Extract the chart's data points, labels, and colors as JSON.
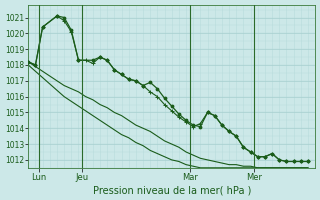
{
  "background_color": "#cce8e8",
  "grid_color_major": "#a8d0d0",
  "grid_color_minor": "#b8dcdc",
  "line_color": "#1a5c1a",
  "title": "Pression niveau de la mer( hPa )",
  "ylim": [
    1011.5,
    1021.8
  ],
  "yticks": [
    1012,
    1013,
    1014,
    1015,
    1016,
    1017,
    1018,
    1019,
    1020,
    1021
  ],
  "xlim": [
    0,
    40
  ],
  "day_labels": [
    "Lun",
    "Jeu",
    "Mar",
    "Mer"
  ],
  "day_positions": [
    1.5,
    7.5,
    22.5,
    31.5
  ],
  "day_vlines": [
    1.5,
    7.5,
    22.5,
    31.5
  ],
  "series1_x": [
    0,
    1,
    2,
    3,
    4,
    5,
    6,
    7,
    8,
    9,
    10,
    11,
    12,
    13,
    14,
    15,
    16,
    17,
    18,
    19,
    20,
    21,
    22,
    23,
    24,
    25,
    26,
    27,
    28,
    29,
    30,
    31,
    32,
    33,
    34,
    35,
    36,
    37,
    38,
    39
  ],
  "series1_y": [
    1018.2,
    1017.9,
    1017.6,
    1017.3,
    1017.0,
    1016.7,
    1016.5,
    1016.3,
    1016.0,
    1015.8,
    1015.5,
    1015.3,
    1015.0,
    1014.8,
    1014.5,
    1014.2,
    1014.0,
    1013.8,
    1013.5,
    1013.2,
    1013.0,
    1012.8,
    1012.5,
    1012.3,
    1012.1,
    1012.0,
    1011.9,
    1011.8,
    1011.7,
    1011.7,
    1011.6,
    1011.6,
    1011.5,
    1011.5,
    1011.5,
    1011.5,
    1011.5,
    1011.5,
    1011.5,
    1011.5
  ],
  "series2_x": [
    0,
    1,
    2,
    3,
    4,
    5,
    6,
    7,
    8,
    9,
    10,
    11,
    12,
    13,
    14,
    15,
    16,
    17,
    18,
    19,
    20,
    21,
    22,
    23,
    24,
    25,
    26,
    27,
    28,
    29,
    30,
    31,
    32,
    33,
    34,
    35,
    36,
    37,
    38,
    39
  ],
  "series2_y": [
    1018.0,
    1017.6,
    1017.2,
    1016.8,
    1016.4,
    1016.0,
    1015.7,
    1015.4,
    1015.1,
    1014.8,
    1014.5,
    1014.2,
    1013.9,
    1013.6,
    1013.4,
    1013.1,
    1012.9,
    1012.6,
    1012.4,
    1012.2,
    1012.0,
    1011.9,
    1011.7,
    1011.6,
    1011.5,
    1011.5,
    1011.5,
    1011.5,
    1011.5,
    1011.5,
    1011.5,
    1011.5,
    1011.5,
    1011.5,
    1011.5,
    1011.5,
    1011.5,
    1011.5,
    1011.5,
    1011.5
  ],
  "curvy_x": [
    0,
    1,
    2,
    4,
    5,
    6,
    7,
    8,
    9,
    10,
    11,
    12,
    13,
    14,
    15,
    16,
    17,
    18,
    19,
    20,
    21,
    22,
    23,
    24,
    25,
    26,
    27,
    28,
    29,
    30,
    31,
    32,
    33,
    34,
    35,
    36,
    37,
    38,
    39
  ],
  "curvy_y": [
    1018.2,
    1018.0,
    1020.4,
    1021.1,
    1020.8,
    1020.1,
    1018.3,
    1018.3,
    1018.1,
    1018.5,
    1018.3,
    1017.7,
    1017.4,
    1017.1,
    1017.0,
    1016.7,
    1016.3,
    1016.0,
    1015.5,
    1015.1,
    1014.7,
    1014.4,
    1014.1,
    1014.3,
    1015.0,
    1014.8,
    1014.2,
    1013.8,
    1013.5,
    1012.8,
    1012.5,
    1012.2,
    1012.2,
    1012.4,
    1012.0,
    1011.9,
    1011.9,
    1011.9,
    1011.9
  ],
  "main_x": [
    0,
    1,
    2,
    4,
    5,
    6,
    7,
    9,
    10,
    11,
    12,
    13,
    14,
    15,
    16,
    17,
    18,
    19,
    20,
    21,
    22,
    23,
    24,
    25,
    26,
    27,
    28,
    29,
    30,
    31,
    32,
    33,
    34,
    35,
    36,
    37,
    38,
    39
  ],
  "main_y": [
    1018.2,
    1018.0,
    1020.4,
    1021.1,
    1021.0,
    1020.2,
    1018.3,
    1018.3,
    1018.5,
    1018.3,
    1017.7,
    1017.4,
    1017.1,
    1017.0,
    1016.7,
    1016.9,
    1016.5,
    1015.9,
    1015.4,
    1014.9,
    1014.5,
    1014.2,
    1014.1,
    1015.0,
    1014.8,
    1014.2,
    1013.8,
    1013.5,
    1012.8,
    1012.5,
    1012.2,
    1012.2,
    1012.4,
    1012.0,
    1011.9,
    1011.9,
    1011.9,
    1011.9
  ]
}
